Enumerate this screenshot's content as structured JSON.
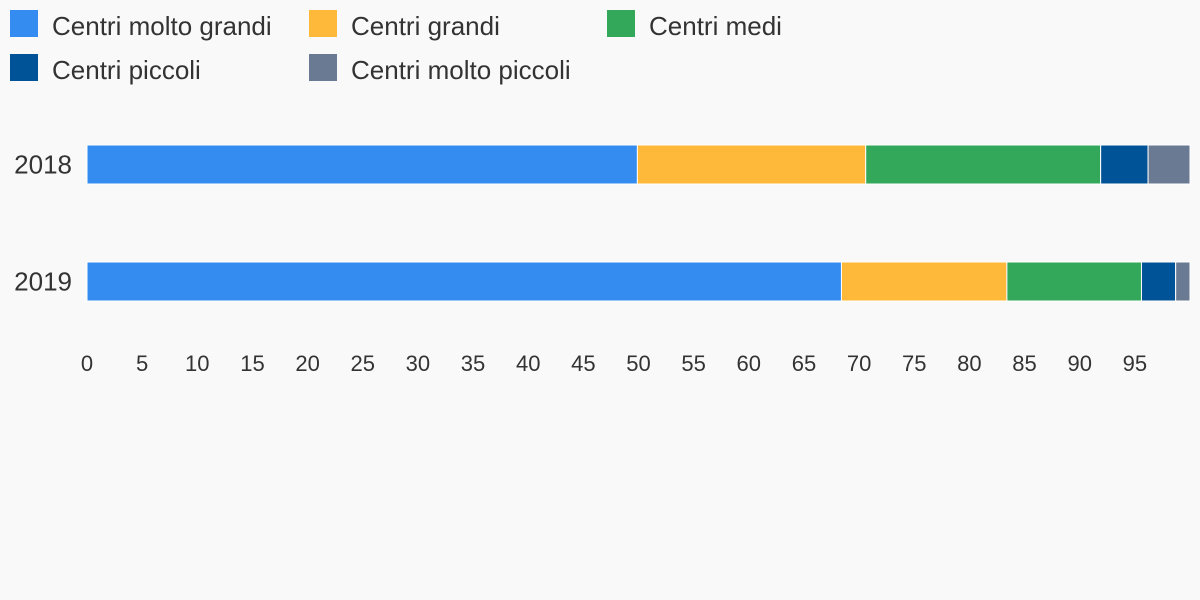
{
  "chart_data": {
    "type": "bar",
    "orientation": "horizontal",
    "stacked": true,
    "categories": [
      "2018",
      "2019"
    ],
    "series": [
      {
        "name": "Centri molto grandi",
        "color": "#348cf0",
        "values": [
          49.9,
          68.4
        ]
      },
      {
        "name": "Centri grandi",
        "color": "#ffb93a",
        "values": [
          20.7,
          15.0
        ]
      },
      {
        "name": "Centri medi",
        "color": "#33a75a",
        "values": [
          21.3,
          12.2
        ]
      },
      {
        "name": "Centri piccoli",
        "color": "#005396",
        "values": [
          4.3,
          3.1
        ]
      },
      {
        "name": "Centri molto piccoli",
        "color": "#6a7a93",
        "values": [
          3.8,
          1.3
        ]
      }
    ],
    "xlim": [
      0,
      100
    ],
    "xticks": [
      0,
      5,
      10,
      15,
      20,
      25,
      30,
      35,
      40,
      45,
      50,
      55,
      60,
      65,
      70,
      75,
      80,
      85,
      90,
      95
    ],
    "grid": false,
    "legend": "top",
    "title": "",
    "xlabel": "",
    "ylabel": ""
  }
}
